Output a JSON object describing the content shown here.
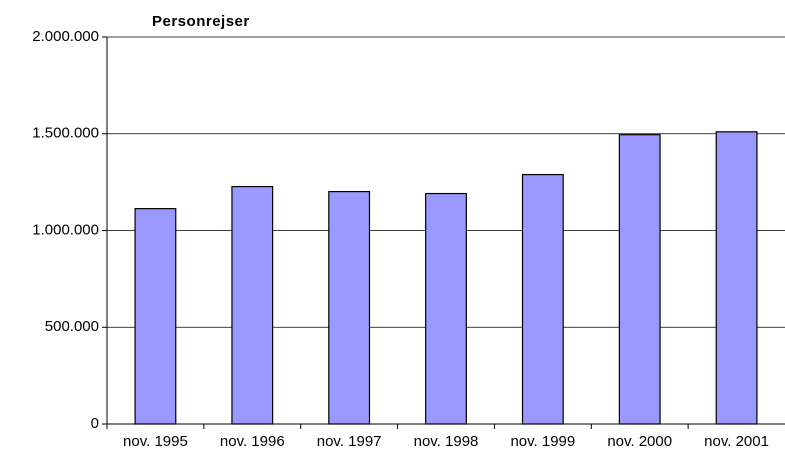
{
  "chart_data": {
    "type": "bar",
    "title": "Personrejser",
    "categories": [
      "nov. 1995",
      "nov. 1996",
      "nov. 1997",
      "nov. 1998",
      "nov. 1999",
      "nov. 2000",
      "nov. 2001"
    ],
    "values": [
      1113000,
      1227000,
      1201000,
      1191000,
      1289000,
      1495000,
      1510000
    ],
    "color": "#9999ff",
    "ylim": [
      0,
      2000000
    ],
    "yticks": [
      0,
      {
        "value": 500000,
        "label": "500.000"
      },
      {
        "value": 1000000,
        "label": "1.000.000"
      },
      {
        "value": 1500000,
        "label": "1.500.000"
      },
      {
        "value": 2000000,
        "label": "2.000.000"
      }
    ],
    "grid": true
  }
}
